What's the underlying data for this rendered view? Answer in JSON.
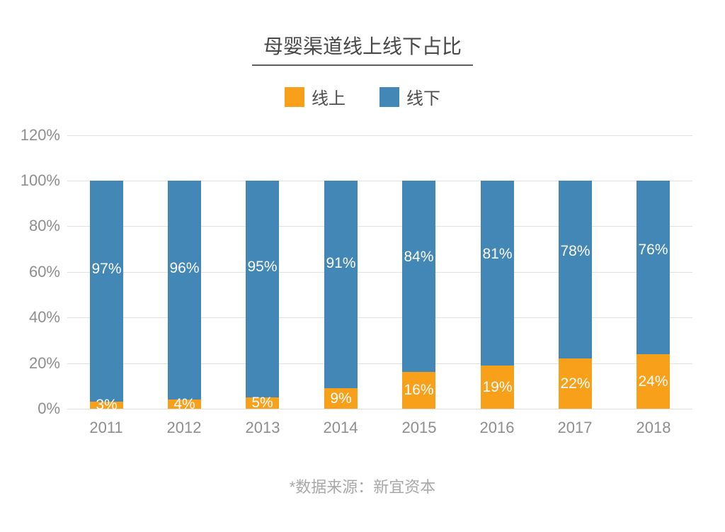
{
  "title": "母婴渠道线上线下占比",
  "legend": {
    "online_label": "线上",
    "offline_label": "线下"
  },
  "footnote": "*数据来源：新宜资本",
  "colors": {
    "online": "#F9A01B",
    "offline": "#4287B5",
    "grid": "#E1E1E1",
    "axis_text": "#8E8E8E",
    "title_text": "#484848",
    "bar_label_text": "#FFFFFF",
    "footnote_text": "#A8A8A8"
  },
  "chart_data": {
    "type": "bar",
    "stacked": true,
    "title": "母婴渠道线上线下占比",
    "categories": [
      "2011",
      "2012",
      "2013",
      "2014",
      "2015",
      "2016",
      "2017",
      "2018"
    ],
    "series": [
      {
        "name": "线上",
        "color": "#F9A01B",
        "values": [
          3,
          4,
          5,
          9,
          16,
          19,
          22,
          24
        ],
        "labels": [
          "3%",
          "4%",
          "5%",
          "9%",
          "16%",
          "19%",
          "22%",
          "24%"
        ]
      },
      {
        "name": "线下",
        "color": "#4287B5",
        "values": [
          97,
          96,
          95,
          91,
          84,
          81,
          78,
          76
        ],
        "labels": [
          "97%",
          "96%",
          "95%",
          "91%",
          "84%",
          "81%",
          "78%",
          "76%"
        ]
      }
    ],
    "y_axis": {
      "min": 0,
      "max": 120,
      "step": 20,
      "unit": "%",
      "tick_labels": [
        "0%",
        "20%",
        "40%",
        "60%",
        "80%",
        "100%",
        "120%"
      ]
    },
    "grid": true,
    "legend_position": "top",
    "bar_label_color": "#FFFFFF"
  }
}
